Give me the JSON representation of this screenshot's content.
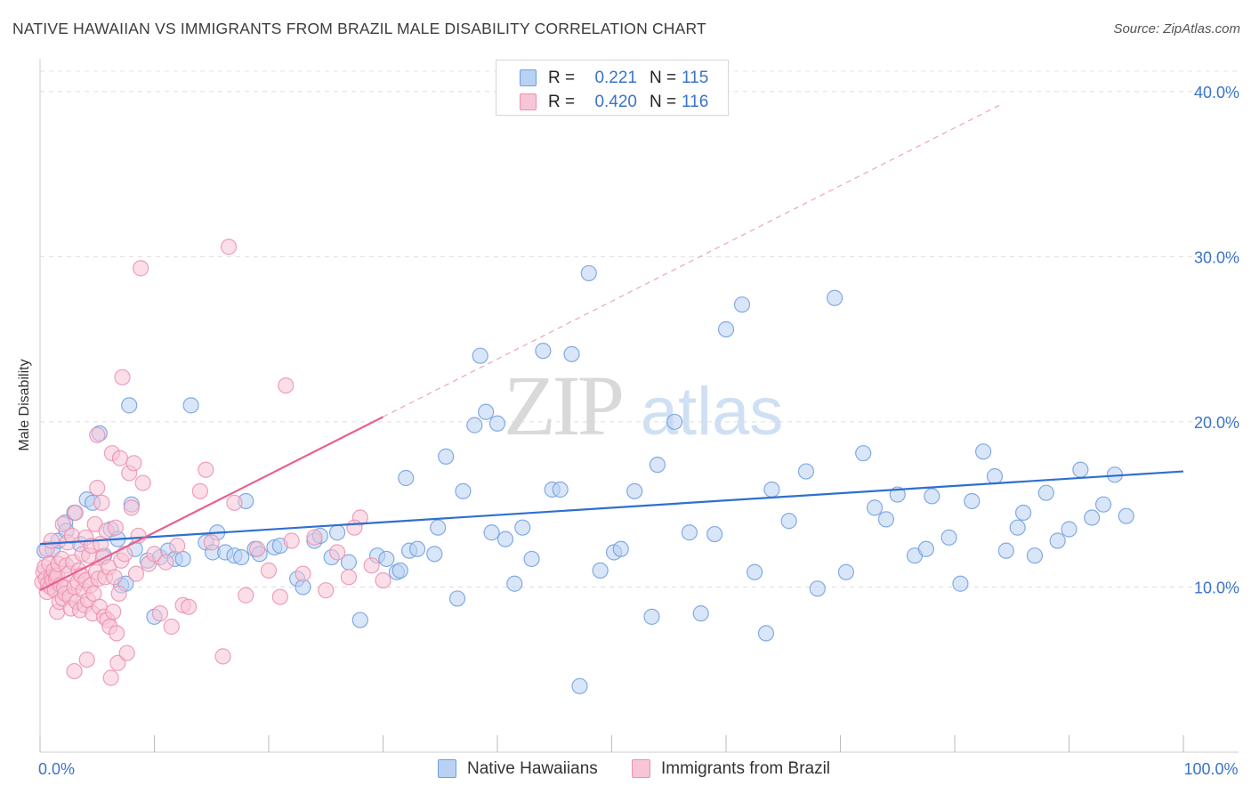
{
  "title": "NATIVE HAWAIIAN VS IMMIGRANTS FROM BRAZIL MALE DISABILITY CORRELATION CHART",
  "source": "Source: ZipAtlas.com",
  "watermark": {
    "zip": "ZIP",
    "atlas": "atlas"
  },
  "legend_top": [
    {
      "r_key": "R =",
      "r_value": "0.221",
      "n_key": "N =",
      "n_value": "115",
      "fill": "#b9d1f2",
      "stroke": "#6e9ee0"
    },
    {
      "r_key": "R =",
      "r_value": "0.420",
      "n_key": "N =",
      "n_value": "116",
      "fill": "#f8c5d6",
      "stroke": "#ec8fae"
    }
  ],
  "chart_data": {
    "type": "scatter",
    "title": "NATIVE HAWAIIAN VS IMMIGRANTS FROM BRAZIL MALE DISABILITY CORRELATION CHART",
    "xlabel": "",
    "ylabel": "Male Disability",
    "xlim": [
      0,
      100
    ],
    "ylim": [
      0,
      41.5
    ],
    "x_tick_labels": [
      {
        "value": 0,
        "label": "0.0%"
      },
      {
        "value": 100,
        "label": "100.0%"
      }
    ],
    "y_tick_labels": [
      {
        "value": 10,
        "label": "10.0%"
      },
      {
        "value": 20,
        "label": "20.0%"
      },
      {
        "value": 30,
        "label": "30.0%"
      },
      {
        "value": 40,
        "label": "40.0%"
      }
    ],
    "x_minor_ticks": [
      0,
      10,
      20,
      30,
      40,
      50,
      60,
      70,
      80,
      90,
      100
    ],
    "grid": true,
    "series": [
      {
        "name": "Native Hawaiians",
        "color": "#6e9ee0",
        "fill": "#b9d1f2",
        "line_color": "#2f6fcf",
        "R": 0.221,
        "N": 115,
        "trend": {
          "x0": 0,
          "y0": 12.6,
          "x1": 100,
          "y1": 17.0
        },
        "x": [
          0.4,
          1.1,
          1.6,
          2.2,
          2.3,
          3.0,
          3.5,
          4.1,
          4.6,
          5.2,
          5.6,
          6.2,
          6.8,
          7.1,
          7.5,
          7.8,
          8.0,
          8.3,
          9.4,
          10.0,
          10.5,
          11.2,
          11.8,
          12.5,
          13.2,
          14.5,
          15.1,
          15.5,
          16.2,
          17.0,
          17.6,
          18.0,
          18.8,
          19.2,
          20.5,
          21.0,
          22.5,
          23.0,
          24.0,
          24.5,
          25.5,
          26.0,
          27.0,
          28.0,
          29.5,
          30.3,
          31.2,
          31.5,
          32.0,
          32.3,
          33.0,
          34.5,
          34.8,
          35.5,
          36.5,
          37.0,
          38.0,
          38.5,
          39.0,
          39.5,
          40.0,
          40.7,
          41.5,
          42.2,
          43.0,
          44.0,
          44.8,
          45.5,
          46.5,
          47.2,
          48.0,
          49.0,
          50.2,
          50.8,
          52.0,
          53.5,
          54.0,
          55.5,
          56.8,
          57.8,
          59.0,
          60.0,
          61.4,
          62.5,
          63.5,
          64.0,
          65.5,
          67.0,
          68.0,
          69.5,
          70.5,
          72.0,
          73.0,
          74.0,
          75.0,
          76.5,
          77.5,
          78.0,
          79.5,
          80.5,
          81.5,
          82.5,
          83.5,
          84.5,
          85.5,
          86.0,
          87.0,
          88.0,
          89.0,
          90.0,
          91.0,
          92.0,
          93.0,
          94.0,
          95.0
        ],
        "y": [
          12.2,
          12.3,
          12.8,
          13.9,
          13.4,
          14.5,
          12.6,
          15.3,
          15.1,
          19.3,
          11.9,
          13.5,
          12.9,
          10.1,
          10.2,
          21.0,
          15.0,
          12.3,
          11.6,
          8.2,
          11.8,
          12.2,
          11.7,
          11.7,
          21.0,
          12.7,
          12.1,
          13.3,
          12.1,
          11.9,
          11.8,
          15.2,
          12.3,
          12.0,
          12.4,
          12.5,
          10.5,
          10.0,
          12.8,
          13.1,
          11.8,
          13.3,
          11.5,
          8.0,
          11.9,
          11.7,
          10.9,
          11.0,
          16.6,
          12.2,
          12.3,
          12.0,
          13.6,
          17.9,
          9.3,
          15.8,
          19.8,
          24.0,
          20.6,
          13.3,
          19.9,
          12.9,
          10.2,
          13.6,
          11.7,
          24.3,
          15.9,
          15.9,
          24.1,
          4.0,
          29.0,
          11.0,
          12.1,
          12.3,
          15.8,
          8.2,
          17.4,
          20.0,
          13.3,
          8.4,
          13.2,
          25.6,
          27.1,
          10.9,
          7.2,
          15.9,
          14.0,
          17.0,
          9.9,
          27.5,
          10.9,
          18.1,
          14.8,
          14.1,
          15.6,
          11.9,
          12.3,
          15.5,
          13.0,
          10.2,
          15.2,
          18.2,
          16.7,
          12.2,
          13.6,
          14.5,
          11.9,
          15.7,
          12.8,
          13.5,
          17.1,
          14.2,
          15.0,
          16.8,
          14.3
        ]
      },
      {
        "name": "Immigrants from Brazil",
        "color": "#ec8fae",
        "fill": "#f8c5d6",
        "line_color": "#e8628d",
        "R": 0.42,
        "N": 116,
        "trend": {
          "x0": 0,
          "y0": 9.8,
          "x1": 30,
          "y1": 20.3
        },
        "trend_dashed": {
          "x0": 30,
          "y0": 20.3,
          "x1": 84,
          "y1": 39.2
        },
        "x": [
          0.2,
          0.3,
          0.4,
          0.5,
          0.6,
          0.6,
          0.7,
          0.8,
          0.9,
          1.0,
          1.0,
          1.1,
          1.2,
          1.3,
          1.4,
          1.5,
          1.5,
          1.6,
          1.7,
          1.8,
          1.9,
          2.0,
          2.0,
          2.1,
          2.2,
          2.3,
          2.4,
          2.5,
          2.6,
          2.7,
          2.8,
          2.9,
          3.0,
          3.0,
          3.1,
          3.2,
          3.3,
          3.4,
          3.5,
          3.6,
          3.7,
          3.8,
          3.9,
          4.0,
          4.0,
          4.1,
          4.2,
          4.3,
          4.4,
          4.5,
          4.6,
          4.7,
          4.8,
          4.9,
          5.0,
          5.0,
          5.1,
          5.2,
          5.3,
          5.4,
          5.5,
          5.6,
          5.7,
          5.8,
          5.9,
          6.0,
          6.1,
          6.2,
          6.3,
          6.4,
          6.5,
          6.6,
          6.7,
          6.8,
          6.9,
          7.0,
          7.1,
          7.2,
          7.4,
          7.6,
          7.8,
          8.0,
          8.2,
          8.4,
          8.6,
          9.0,
          9.5,
          10.0,
          10.5,
          11.0,
          11.5,
          12.0,
          12.5,
          13.0,
          14.0,
          14.5,
          15.0,
          16.0,
          17.0,
          18.0,
          19.0,
          20.0,
          21.0,
          22.0,
          23.0,
          24.0,
          25.0,
          26.0,
          27.0,
          28.0,
          29.0,
          30.0,
          8.8,
          16.5,
          21.5,
          27.5
        ],
        "y": [
          10.3,
          10.9,
          11.2,
          10.5,
          9.7,
          12.3,
          10.2,
          11.4,
          10.0,
          10.6,
          12.8,
          10.4,
          11.0,
          9.8,
          10.5,
          8.5,
          10.7,
          11.4,
          9.1,
          10.1,
          11.7,
          9.3,
          13.8,
          10.0,
          9.6,
          11.3,
          12.7,
          10.8,
          9.4,
          8.7,
          13.1,
          11.5,
          10.0,
          4.9,
          14.5,
          9.1,
          10.3,
          11.0,
          8.6,
          10.7,
          12.0,
          9.8,
          8.9,
          13.0,
          10.4,
          5.6,
          9.2,
          11.9,
          10.1,
          12.5,
          8.4,
          9.6,
          13.8,
          10.9,
          16.0,
          19.2,
          10.5,
          8.8,
          12.6,
          15.1,
          11.8,
          8.2,
          10.6,
          13.4,
          8.0,
          11.2,
          7.6,
          4.5,
          18.1,
          8.5,
          10.6,
          13.6,
          7.2,
          5.4,
          9.6,
          17.8,
          11.6,
          22.7,
          12.0,
          6.0,
          16.9,
          14.8,
          17.5,
          10.8,
          13.1,
          16.3,
          11.4,
          12.0,
          8.4,
          11.5,
          7.6,
          12.5,
          8.9,
          8.8,
          15.8,
          17.1,
          12.7,
          5.8,
          15.1,
          9.5,
          12.3,
          11.0,
          9.4,
          12.8,
          10.8,
          13.0,
          9.8,
          12.1,
          10.6,
          14.2,
          11.3,
          10.4,
          29.3,
          30.6,
          22.2,
          13.6
        ]
      }
    ]
  }
}
